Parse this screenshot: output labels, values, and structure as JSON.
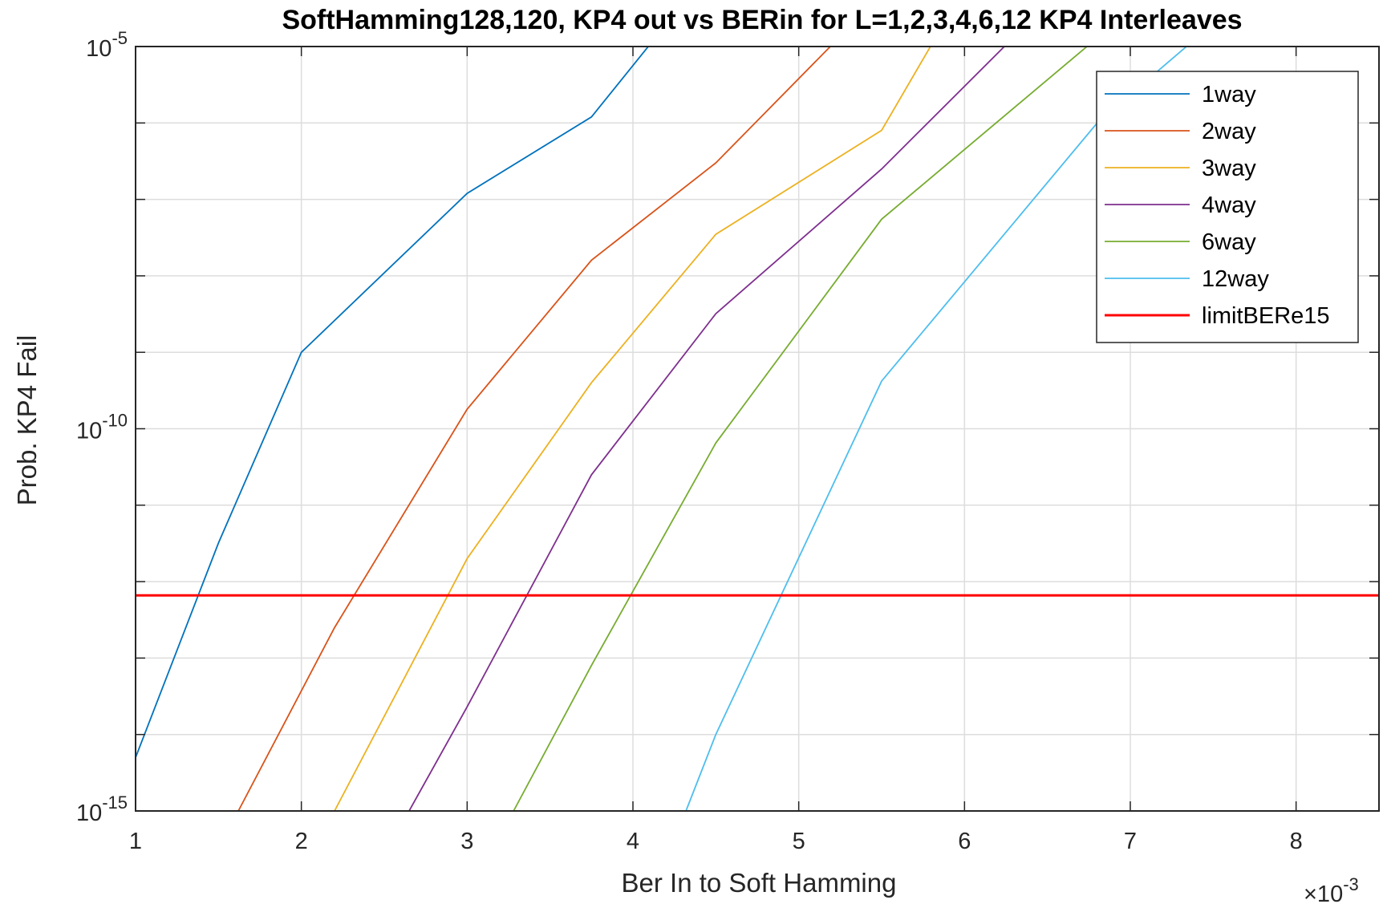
{
  "chart_data": {
    "type": "line",
    "title": "SoftHamming128,120, KP4 out vs BERin for L=1,2,3,4,6,12 KP4 Interleaves",
    "xlabel": "Ber In to Soft Hamming",
    "ylabel": "Prob. KP4 Fail",
    "x_multiplier_label": "×10",
    "x_multiplier_exponent": "-3",
    "xlim": [
      0.001,
      0.0085
    ],
    "ylim": [
      1e-15,
      1e-05
    ],
    "yscale": "log",
    "grid": true,
    "legend_position": "top-right",
    "x_ticks": [
      0.001,
      0.002,
      0.003,
      0.004,
      0.005,
      0.006,
      0.007,
      0.008
    ],
    "x_tick_labels": [
      "1",
      "2",
      "3",
      "4",
      "5",
      "6",
      "7",
      "8"
    ],
    "y_ticks": [
      1e-15,
      1e-10,
      1e-05
    ],
    "y_tick_labels": [
      {
        "base": "10",
        "exp": "-15"
      },
      {
        "base": "10",
        "exp": "-10"
      },
      {
        "base": "10",
        "exp": "-5"
      }
    ],
    "series": [
      {
        "name": "1way",
        "color": "#0072BD",
        "points": [
          [
            0.001,
            5e-15
          ],
          [
            0.0015,
            3.2e-12
          ],
          [
            0.002,
            1e-09
          ],
          [
            0.003,
            1.2e-07
          ],
          [
            0.00375,
            1.2e-06
          ],
          [
            0.0041,
            1.05e-05
          ]
        ]
      },
      {
        "name": "2way",
        "color": "#D95319",
        "points": [
          [
            0.00162,
            1e-15
          ],
          [
            0.0022,
            2.5e-13
          ],
          [
            0.003,
            1.8e-10
          ],
          [
            0.00375,
            1.6e-08
          ],
          [
            0.0045,
            3e-07
          ],
          [
            0.0052,
            1.05e-05
          ]
        ]
      },
      {
        "name": "3way",
        "color": "#EDB120",
        "points": [
          [
            0.0022,
            1e-15
          ],
          [
            0.003,
            2e-12
          ],
          [
            0.00375,
            4e-10
          ],
          [
            0.0045,
            3.5e-08
          ],
          [
            0.0055,
            8e-07
          ],
          [
            0.0058,
            1.05e-05
          ]
        ]
      },
      {
        "name": "4way",
        "color": "#7E2F8E",
        "points": [
          [
            0.00265,
            1e-15
          ],
          [
            0.003,
            2.3e-14
          ],
          [
            0.00375,
            2.5e-11
          ],
          [
            0.0045,
            3.2e-09
          ],
          [
            0.0055,
            2.5e-07
          ],
          [
            0.00625,
            1.05e-05
          ]
        ]
      },
      {
        "name": "6way",
        "color": "#77AC30",
        "points": [
          [
            0.00328,
            1e-15
          ],
          [
            0.00375,
            8e-14
          ],
          [
            0.0045,
            6.5e-11
          ],
          [
            0.0055,
            5.5e-08
          ],
          [
            0.00675,
            1.05e-05
          ]
        ]
      },
      {
        "name": "12way",
        "color": "#4DBEEE",
        "points": [
          [
            0.00432,
            1e-15
          ],
          [
            0.0045,
            1e-14
          ],
          [
            0.0055,
            4.2e-10
          ],
          [
            0.0068,
            1e-06
          ],
          [
            0.00735,
            1.05e-05
          ]
        ]
      },
      {
        "name": "limitBERe15",
        "color": "#FF0000",
        "points": [
          [
            0.001,
            6.6e-13
          ],
          [
            0.0085,
            6.6e-13
          ]
        ]
      }
    ]
  }
}
